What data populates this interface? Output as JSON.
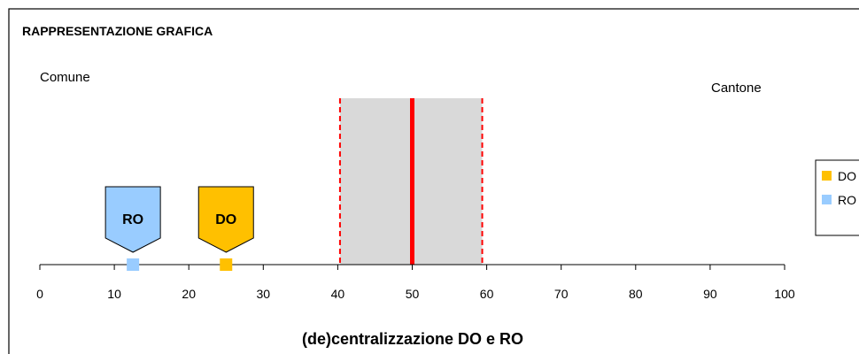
{
  "chart_data": {
    "type": "scatter",
    "title": "RAPPRESENTAZIONE GRAFICA",
    "xlabel": "(de)centralizzazione DO e RO",
    "ylabel": "",
    "xlim": [
      0,
      100
    ],
    "ticks": [
      "0",
      "10",
      "20",
      "30",
      "40",
      "50",
      "60",
      "70",
      "80",
      "90",
      "100"
    ],
    "left_label": "Comune",
    "right_label": "Cantone",
    "band": {
      "from": 40.3,
      "to": 59.4,
      "color": "#d9d9d9",
      "edge_color": "#ff0000"
    },
    "center_line": {
      "value": 50,
      "color": "#ff0000"
    },
    "series": [
      {
        "name": "DO",
        "x": 25,
        "color": "#ffc000",
        "marker_label": "DO"
      },
      {
        "name": "RO",
        "x": 12.5,
        "color": "#99ccff",
        "marker_label": "RO"
      }
    ],
    "legend": {
      "position": "right",
      "entries": [
        "DO",
        "RO"
      ]
    },
    "grid": false
  }
}
